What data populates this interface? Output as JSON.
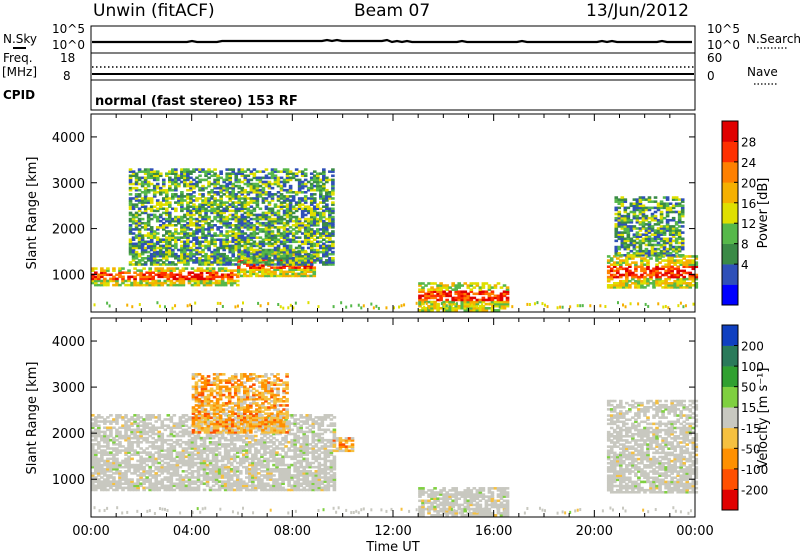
{
  "header": {
    "station": "Unwin (fitACF)",
    "beam": "Beam 07",
    "date": "13/Jun/2012"
  },
  "noise_panel": {
    "left_label": "N.Sky",
    "right_label": "N.Search",
    "left_ticks": [
      "10^5",
      "10^0"
    ],
    "right_ticks": [
      "10^5",
      "10^0"
    ]
  },
  "freq_panel": {
    "left_label_1": "Freq.",
    "left_label_2": "[MHz]",
    "right_label": "Nave",
    "left_ticks": [
      "18",
      "8"
    ],
    "right_ticks": [
      "60",
      "0"
    ]
  },
  "cpid_panel": {
    "label": "CPID",
    "text": "normal (fast stereo) 153 RF"
  },
  "chart_data": [
    {
      "type": "heatmap",
      "title": "",
      "parameter": "Power",
      "ylabel": "Slant Range [km]",
      "ylim": [
        180,
        4500
      ],
      "yticks": [
        1000,
        2000,
        3000,
        4000
      ],
      "xlim": [
        "00:00",
        "24:00"
      ],
      "colorbar": {
        "label": "Power [dB]",
        "ticks": [
          "28",
          "24",
          "20",
          "16",
          "12",
          "8",
          "4"
        ],
        "colors": [
          "#0000ff",
          "#2f50b8",
          "#3a8a46",
          "#56b84a",
          "#dfdf00",
          "#f5b000",
          "#ff8000",
          "#ff3000",
          "#e00000"
        ]
      },
      "echo_regions": [
        {
          "t_start": 0.0,
          "t_end": 5.8,
          "range_low": 750,
          "range_high": 1150,
          "level": "high"
        },
        {
          "t_start": 5.8,
          "t_end": 8.8,
          "range_low": 950,
          "range_high": 1500,
          "level": "high"
        },
        {
          "t_start": 1.5,
          "t_end": 9.6,
          "range_low": 1200,
          "range_high": 3300,
          "level": "medium"
        },
        {
          "t_start": 13.0,
          "t_end": 16.5,
          "range_low": 200,
          "range_high": 800,
          "level": "high"
        },
        {
          "t_start": 20.5,
          "t_end": 24.0,
          "range_low": 700,
          "range_high": 1400,
          "level": "high"
        },
        {
          "t_start": 20.8,
          "t_end": 23.5,
          "range_low": 1400,
          "range_high": 2700,
          "level": "medium"
        }
      ]
    },
    {
      "type": "heatmap",
      "title": "",
      "parameter": "Velocity",
      "ylabel": "Slant Range [km]",
      "ylim": [
        180,
        4500
      ],
      "yticks": [
        1000,
        2000,
        3000,
        4000
      ],
      "xlabel": "Time UT",
      "xticks": [
        "00:00",
        "04:00",
        "08:00",
        "12:00",
        "16:00",
        "20:00",
        "00:00"
      ],
      "colorbar": {
        "label": "Velocity [m s⁻¹]",
        "ticks": [
          "200",
          "100",
          "50",
          "15",
          "-15",
          "-50",
          "-100",
          "-200"
        ],
        "colors": [
          "#e00000",
          "#ff5000",
          "#ff9000",
          "#f5c040",
          "#c8c8c0",
          "#7fd040",
          "#30a030",
          "#2a7a5a",
          "#1040c0"
        ]
      },
      "echo_regions": [
        {
          "t_start": 0.0,
          "t_end": 9.6,
          "range_low": 750,
          "range_high": 2400,
          "dominant": "ground scatter"
        },
        {
          "t_start": 4.0,
          "t_end": 7.8,
          "range_low": 2000,
          "range_high": 3300,
          "dominant": "-15 to -100"
        },
        {
          "t_start": 9.6,
          "t_end": 10.4,
          "range_low": 1600,
          "range_high": 1900,
          "dominant": "-50 to -100"
        },
        {
          "t_start": 13.0,
          "t_end": 16.5,
          "range_low": 200,
          "range_high": 800,
          "dominant": "ground scatter"
        },
        {
          "t_start": 20.5,
          "t_end": 24.0,
          "range_low": 700,
          "range_high": 2700,
          "dominant": "ground scatter"
        }
      ]
    }
  ]
}
